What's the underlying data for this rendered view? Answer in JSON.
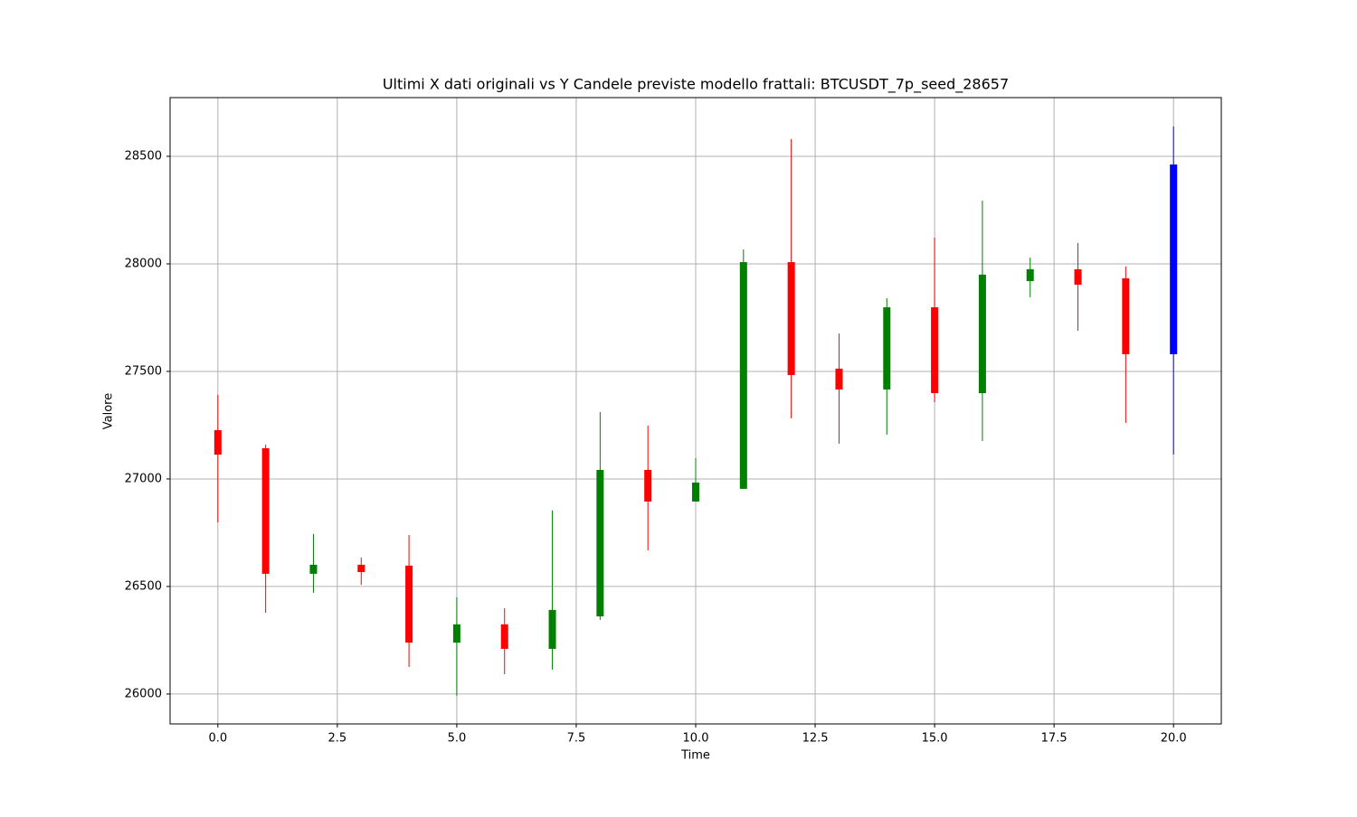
{
  "chart_data": {
    "type": "candlestick",
    "title": "Ultimi X dati originali vs Y Candele previste modello frattali: BTCUSDT_7p_seed_28657",
    "x_label": "Time",
    "y_label": "Valore",
    "x": [
      0,
      1,
      2,
      3,
      4,
      5,
      6,
      7,
      8,
      9,
      10,
      11,
      12,
      13,
      14,
      15,
      16,
      17,
      18,
      19,
      20
    ],
    "open": [
      27227,
      27143,
      26559,
      26601,
      26597,
      26239,
      26324,
      26210,
      26361,
      27042,
      26895,
      26954,
      28008,
      27513,
      27416,
      27798,
      27399,
      27920,
      27975,
      27933,
      27580
    ],
    "high": [
      27391,
      27160,
      26744,
      26634,
      26740,
      26450,
      26399,
      26853,
      27311,
      27248,
      27097,
      28067,
      28580,
      27676,
      27840,
      28122,
      28294,
      28029,
      28097,
      27988,
      28639
    ],
    "low": [
      26798,
      26378,
      26471,
      26508,
      26126,
      25992,
      26092,
      26113,
      26345,
      26668,
      26895,
      26954,
      27282,
      27164,
      27206,
      27357,
      27176,
      27845,
      27689,
      27261,
      27113
    ],
    "close": [
      27113,
      26559,
      26601,
      26567,
      26239,
      26324,
      26210,
      26391,
      27042,
      26895,
      26983,
      28008,
      27483,
      27416,
      27798,
      27399,
      27950,
      27975,
      27903,
      27580,
      28462
    ],
    "colors": [
      "red",
      "red",
      "green",
      "red",
      "red",
      "green",
      "red",
      "green",
      "green",
      "red",
      "green",
      "green",
      "red",
      "red",
      "green",
      "red",
      "green",
      "green",
      "red",
      "red",
      "blue"
    ],
    "xlim": [
      -1,
      21
    ],
    "ylim": [
      25861,
      28773
    ],
    "xticks": [
      {
        "value": 0,
        "label": "0.0"
      },
      2.5,
      {
        "value": 5,
        "label": "5.0"
      },
      7.5,
      {
        "value": 10,
        "label": "10.0"
      },
      12.5,
      {
        "value": 15,
        "label": "15.0"
      },
      17.5,
      {
        "value": 20,
        "label": "20.0"
      }
    ],
    "yticks": [
      26000,
      26500,
      27000,
      27500,
      28000,
      28500
    ],
    "grid": true
  }
}
